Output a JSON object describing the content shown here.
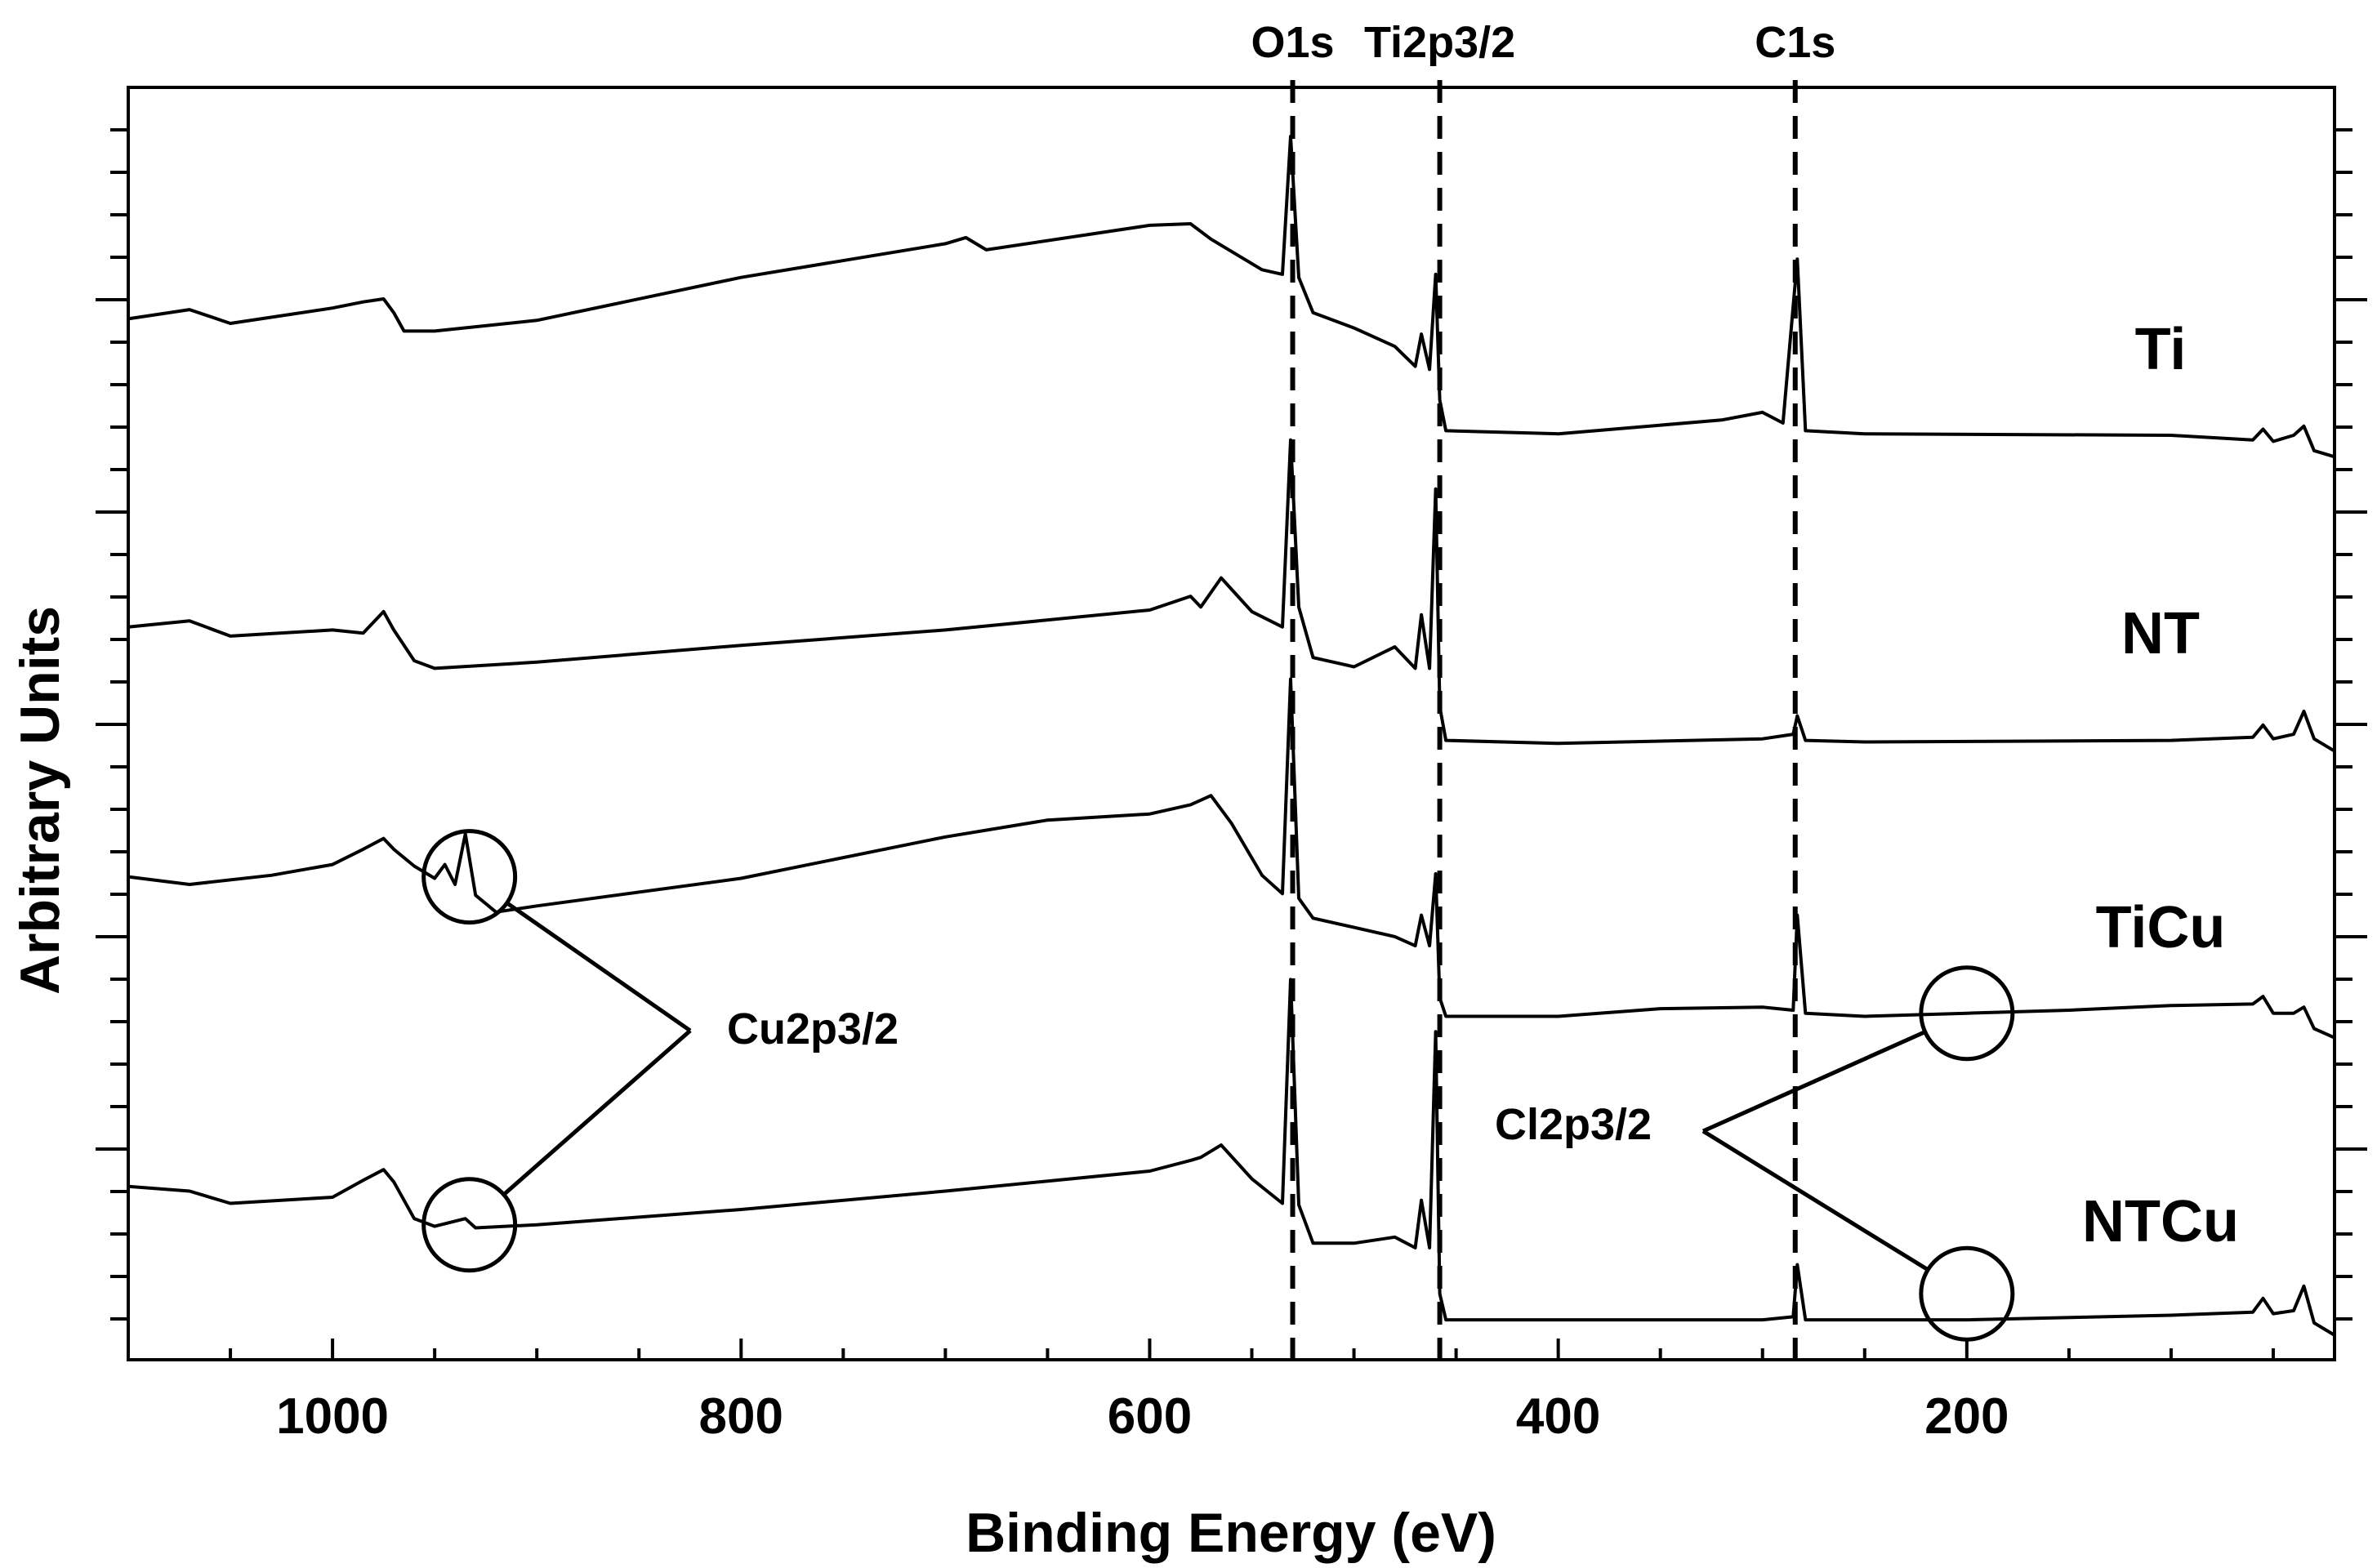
{
  "chart_data": {
    "type": "line",
    "title": "",
    "xlabel": "Binding Energy (eV)",
    "ylabel": "Arbitrary Units",
    "xlim": [
      1100,
      20
    ],
    "x_reversed": true,
    "x_ticks": [
      1000,
      800,
      600,
      400,
      200
    ],
    "y_ticks_labeled": false,
    "grid": false,
    "legend": "none",
    "series": [
      {
        "name": "Ti",
        "points": [
          [
            1100,
            209
          ],
          [
            1070,
            203
          ],
          [
            1050,
            212
          ],
          [
            1000,
            202
          ],
          [
            985,
            198
          ],
          [
            975,
            196
          ],
          [
            970,
            205
          ],
          [
            965,
            217
          ],
          [
            950,
            217
          ],
          [
            900,
            210
          ],
          [
            800,
            182
          ],
          [
            700,
            160
          ],
          [
            690,
            156
          ],
          [
            680,
            164
          ],
          [
            600,
            148
          ],
          [
            580,
            147
          ],
          [
            570,
            157
          ],
          [
            545,
            177
          ],
          [
            535,
            180
          ],
          [
            531,
            90
          ],
          [
            527,
            182
          ],
          [
            520,
            205
          ],
          [
            500,
            215
          ],
          [
            480,
            227
          ],
          [
            470,
            240
          ],
          [
            467,
            219
          ],
          [
            463,
            242
          ],
          [
            460,
            180
          ],
          [
            458,
            262
          ],
          [
            455,
            282
          ],
          [
            400,
            284
          ],
          [
            320,
            275
          ],
          [
            300,
            270
          ],
          [
            290,
            277
          ],
          [
            283,
            170
          ],
          [
            279,
            282
          ],
          [
            250,
            284
          ],
          [
            100,
            285
          ],
          [
            60,
            288
          ],
          [
            55,
            281
          ],
          [
            50,
            289
          ],
          [
            40,
            285
          ],
          [
            35,
            279
          ],
          [
            30,
            295
          ],
          [
            20,
            299
          ]
        ]
      },
      {
        "name": "NT",
        "points": [
          [
            1100,
            410
          ],
          [
            1070,
            406
          ],
          [
            1050,
            416
          ],
          [
            1000,
            412
          ],
          [
            985,
            414
          ],
          [
            975,
            400
          ],
          [
            970,
            412
          ],
          [
            960,
            432
          ],
          [
            950,
            437
          ],
          [
            900,
            433
          ],
          [
            800,
            422
          ],
          [
            700,
            412
          ],
          [
            600,
            399
          ],
          [
            580,
            390
          ],
          [
            575,
            397
          ],
          [
            565,
            378
          ],
          [
            550,
            400
          ],
          [
            535,
            410
          ],
          [
            531,
            288
          ],
          [
            527,
            397
          ],
          [
            520,
            430
          ],
          [
            500,
            436
          ],
          [
            480,
            423
          ],
          [
            470,
            437
          ],
          [
            467,
            402
          ],
          [
            463,
            437
          ],
          [
            460,
            320
          ],
          [
            458,
            462
          ],
          [
            455,
            484
          ],
          [
            400,
            486
          ],
          [
            300,
            483
          ],
          [
            285,
            480
          ],
          [
            283,
            468
          ],
          [
            279,
            484
          ],
          [
            250,
            485
          ],
          [
            100,
            484
          ],
          [
            60,
            482
          ],
          [
            55,
            474
          ],
          [
            50,
            483
          ],
          [
            40,
            480
          ],
          [
            35,
            465
          ],
          [
            30,
            483
          ],
          [
            20,
            491
          ]
        ]
      },
      {
        "name": "TiCu",
        "points": [
          [
            1100,
            573
          ],
          [
            1070,
            578
          ],
          [
            1030,
            572
          ],
          [
            1000,
            565
          ],
          [
            985,
            555
          ],
          [
            975,
            548
          ],
          [
            970,
            555
          ],
          [
            960,
            566
          ],
          [
            950,
            574
          ],
          [
            945,
            565
          ],
          [
            940,
            578
          ],
          [
            935,
            545
          ],
          [
            930,
            585
          ],
          [
            920,
            596
          ],
          [
            900,
            592
          ],
          [
            800,
            574
          ],
          [
            700,
            547
          ],
          [
            650,
            536
          ],
          [
            600,
            532
          ],
          [
            580,
            526
          ],
          [
            570,
            520
          ],
          [
            560,
            538
          ],
          [
            545,
            572
          ],
          [
            535,
            584
          ],
          [
            531,
            444
          ],
          [
            527,
            587
          ],
          [
            520,
            600
          ],
          [
            500,
            606
          ],
          [
            480,
            612
          ],
          [
            470,
            618
          ],
          [
            467,
            598
          ],
          [
            463,
            618
          ],
          [
            460,
            571
          ],
          [
            458,
            652
          ],
          [
            455,
            664
          ],
          [
            400,
            664
          ],
          [
            350,
            659
          ],
          [
            300,
            658
          ],
          [
            285,
            660
          ],
          [
            283,
            598
          ],
          [
            279,
            662
          ],
          [
            250,
            664
          ],
          [
            200,
            662
          ],
          [
            150,
            660
          ],
          [
            100,
            657
          ],
          [
            60,
            656
          ],
          [
            55,
            651
          ],
          [
            50,
            662
          ],
          [
            40,
            662
          ],
          [
            35,
            658
          ],
          [
            30,
            672
          ],
          [
            20,
            678
          ]
        ]
      },
      {
        "name": "NTCu",
        "points": [
          [
            1100,
            775
          ],
          [
            1070,
            778
          ],
          [
            1050,
            786
          ],
          [
            1000,
            782
          ],
          [
            985,
            771
          ],
          [
            975,
            764
          ],
          [
            970,
            772
          ],
          [
            960,
            796
          ],
          [
            950,
            801
          ],
          [
            935,
            796
          ],
          [
            930,
            802
          ],
          [
            900,
            800
          ],
          [
            800,
            790
          ],
          [
            700,
            778
          ],
          [
            600,
            765
          ],
          [
            580,
            758
          ],
          [
            575,
            756
          ],
          [
            565,
            748
          ],
          [
            550,
            770
          ],
          [
            535,
            786
          ],
          [
            531,
            640
          ],
          [
            527,
            787
          ],
          [
            520,
            812
          ],
          [
            500,
            812
          ],
          [
            480,
            808
          ],
          [
            470,
            815
          ],
          [
            467,
            784
          ],
          [
            463,
            815
          ],
          [
            460,
            674
          ],
          [
            458,
            845
          ],
          [
            455,
            862
          ],
          [
            400,
            862
          ],
          [
            300,
            862
          ],
          [
            285,
            860
          ],
          [
            283,
            826
          ],
          [
            279,
            862
          ],
          [
            250,
            862
          ],
          [
            200,
            862
          ],
          [
            100,
            859
          ],
          [
            60,
            857
          ],
          [
            55,
            848
          ],
          [
            50,
            858
          ],
          [
            40,
            856
          ],
          [
            35,
            840
          ],
          [
            30,
            864
          ],
          [
            20,
            872
          ]
        ]
      }
    ],
    "series_labels": [
      "Ti",
      "NT",
      "TiCu",
      "NTCu"
    ],
    "reference_lines": [
      {
        "label": "O1s",
        "x": 530
      },
      {
        "label": "Ti2p3/2",
        "x": 458
      },
      {
        "label": "C1s",
        "x": 284
      }
    ],
    "annotations": [
      {
        "label": "Cu2p3/2",
        "points": [
          [
            933,
            573
          ],
          [
            933,
            800
          ]
        ]
      },
      {
        "label": "Cl2p3/2",
        "points": [
          [
            200,
            662
          ],
          [
            200,
            845
          ]
        ]
      }
    ]
  }
}
